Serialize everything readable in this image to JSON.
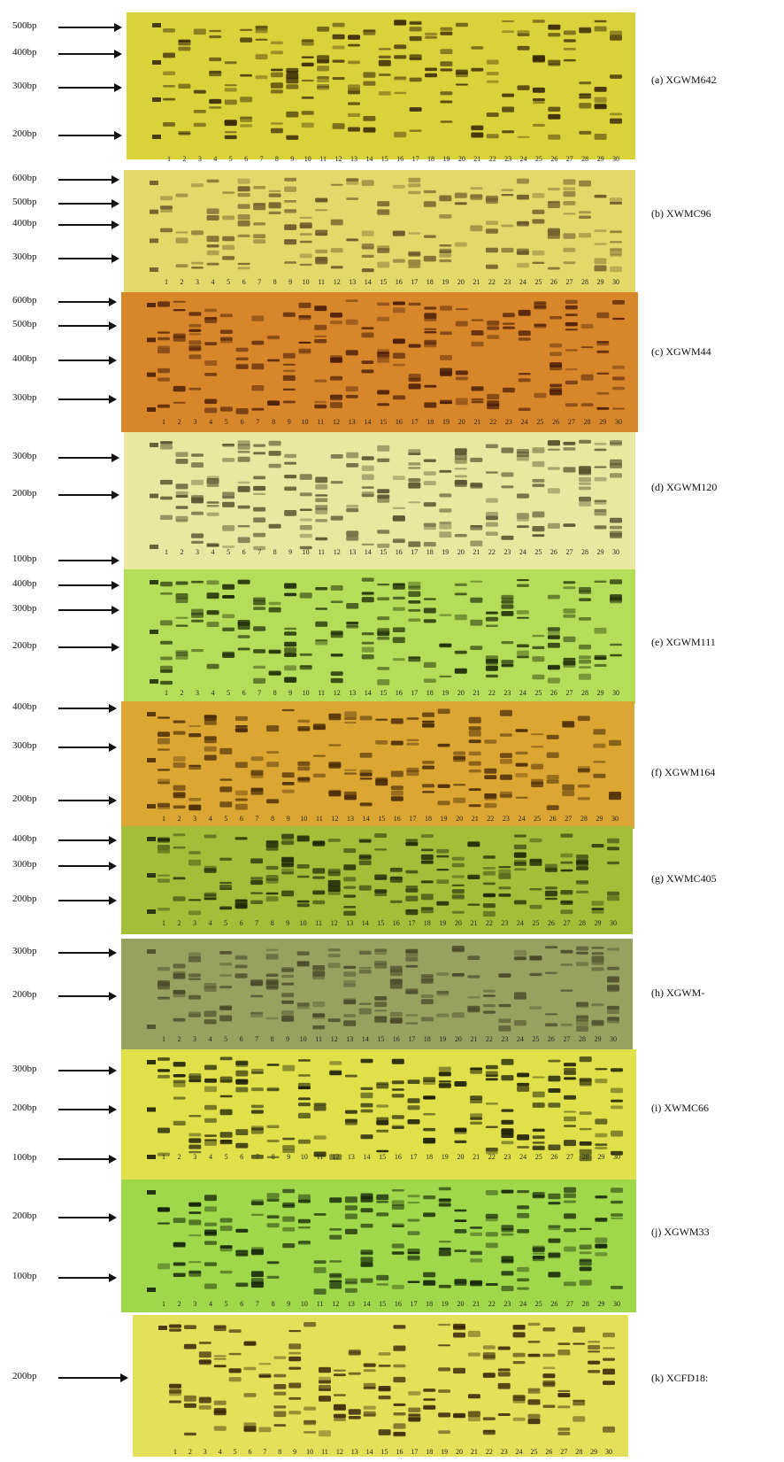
{
  "figure": {
    "panels": [
      {
        "id": "a",
        "title": "(a) XGWM642",
        "color": "#d9d23a",
        "band": "#3a2a08",
        "markers": [
          "500bp",
          "400bp",
          "300bp",
          "200bp"
        ],
        "lanes": [
          "1",
          "2",
          "3",
          "4",
          "5",
          "6",
          "7",
          "8",
          "9",
          "10",
          "11",
          "12",
          "13",
          "14",
          "15",
          "16",
          "17",
          "18",
          "19",
          "20",
          "21",
          "22",
          "23",
          "24",
          "25",
          "26",
          "27",
          "28",
          "29",
          "30"
        ]
      },
      {
        "id": "b",
        "title": "(b) XWMC96",
        "color": "#e3d96a",
        "band": "#6b5a2a",
        "markers": [
          "600bp",
          "500bp",
          "400bp",
          "300bp"
        ],
        "lanes": [
          "1",
          "2",
          "3",
          "4",
          "5",
          "6",
          "7",
          "8",
          "9",
          "10",
          "11",
          "12",
          "13",
          "14",
          "15",
          "16",
          "17",
          "18",
          "19",
          "20",
          "21",
          "22",
          "23",
          "24",
          "25",
          "26",
          "27",
          "28",
          "29",
          "30"
        ]
      },
      {
        "id": "c",
        "title": "(c) XGWM44",
        "color": "#d8862a",
        "band": "#4a1e08",
        "markers": [
          "600bp",
          "500bp",
          "400bp",
          "300bp"
        ],
        "lanes": [
          "1",
          "2",
          "3",
          "4",
          "5",
          "6",
          "7",
          "8",
          "9",
          "10",
          "11",
          "12",
          "13",
          "14",
          "15",
          "16",
          "17",
          "18",
          "19",
          "20",
          "21",
          "22",
          "23",
          "24",
          "25",
          "26",
          "27",
          "28",
          "29",
          "30"
        ]
      },
      {
        "id": "d",
        "title": "(d) XGWM120",
        "color": "#e9e7a0",
        "band": "#5a5430",
        "markers": [
          "300bp",
          "200bp",
          "100bp"
        ],
        "lanes": [
          "1",
          "2",
          "3",
          "4",
          "5",
          "6",
          "7",
          "8",
          "9",
          "10",
          "11",
          "12",
          "13",
          "14",
          "15",
          "16",
          "17",
          "18",
          "19",
          "20",
          "21",
          "22",
          "23",
          "24",
          "25",
          "26",
          "27",
          "28",
          "29",
          "30"
        ]
      },
      {
        "id": "e",
        "title": "(e) XGWM111",
        "color": "#b4de5a",
        "band": "#1f2e08",
        "markers": [
          "400bp",
          "300bp",
          "200bp"
        ],
        "lanes": [
          "1",
          "2",
          "3",
          "4",
          "5",
          "6",
          "7",
          "8",
          "9",
          "10",
          "11",
          "12",
          "13",
          "14",
          "15",
          "16",
          "17",
          "18",
          "19",
          "20",
          "21",
          "22",
          "23",
          "24",
          "25",
          "26",
          "27",
          "28",
          "29",
          "30"
        ]
      },
      {
        "id": "f",
        "title": "(f) XGWM164",
        "color": "#dca632",
        "band": "#4a2c08",
        "markers": [
          "400bp",
          "300bp",
          "200bp"
        ],
        "lanes": [
          "1",
          "2",
          "3",
          "4",
          "5",
          "6",
          "7",
          "8",
          "9",
          "10",
          "11",
          "12",
          "13",
          "14",
          "15",
          "16",
          "17",
          "18",
          "19",
          "20",
          "21",
          "22",
          "23",
          "24",
          "25",
          "26",
          "27",
          "28",
          "29",
          "30"
        ]
      },
      {
        "id": "g",
        "title": "(g) XWMC405",
        "color": "#a2bf3a",
        "band": "#1e2a08",
        "markers": [
          "400bp",
          "300bp",
          "200bp"
        ],
        "lanes": [
          "1",
          "2",
          "3",
          "4",
          "5",
          "6",
          "7",
          "8",
          "9",
          "10",
          "11",
          "12",
          "13",
          "14",
          "15",
          "16",
          "17",
          "18",
          "19",
          "20",
          "21",
          "22",
          "23",
          "24",
          "25",
          "26",
          "27",
          "28",
          "29",
          "30"
        ]
      },
      {
        "id": "h",
        "title": "(h) XGWM-",
        "color": "#98a260",
        "band": "#4a4a2a",
        "markers": [
          "300bp",
          "200bp"
        ],
        "lanes": [
          "1",
          "2",
          "3",
          "4",
          "5",
          "6",
          "7",
          "8",
          "9",
          "10",
          "11",
          "12",
          "13",
          "14",
          "15",
          "16",
          "17",
          "18",
          "19",
          "20",
          "21",
          "22",
          "23",
          "24",
          "25",
          "26",
          "27",
          "28",
          "29",
          "30"
        ]
      },
      {
        "id": "i",
        "title": "(i) XWMC66",
        "color": "#dfe04a",
        "band": "#1c1c08",
        "markers": [
          "300bp",
          "200bp",
          "100bp"
        ],
        "lanes": [
          "1",
          "2",
          "3",
          "4",
          "5",
          "6",
          "7",
          "8",
          "9",
          "10",
          "11",
          "12",
          "13",
          "14",
          "15",
          "16",
          "17",
          "18",
          "19",
          "20",
          "21",
          "22",
          "23",
          "24",
          "25",
          "26",
          "27",
          "28",
          "29",
          "30"
        ]
      },
      {
        "id": "j",
        "title": "(j) XGWM33",
        "color": "#9fd84a",
        "band": "#14240a",
        "markers": [
          "200bp",
          "100bp"
        ],
        "lanes": [
          "1",
          "2",
          "3",
          "4",
          "5",
          "6",
          "7",
          "8",
          "9",
          "10",
          "11",
          "12",
          "13",
          "14",
          "15",
          "16",
          "17",
          "18",
          "19",
          "20",
          "21",
          "22",
          "23",
          "24",
          "25",
          "26",
          "27",
          "28",
          "29",
          "30"
        ]
      },
      {
        "id": "k",
        "title": "(k) XCFD18:",
        "color": "#e4e05a",
        "band": "#3a2a0a",
        "markers": [
          "200bp"
        ],
        "lanes": [
          "1",
          "2",
          "3",
          "4",
          "5",
          "6",
          "7",
          "8",
          "9",
          "10",
          "11",
          "12",
          "13",
          "14",
          "15",
          "16",
          "17",
          "18",
          "19",
          "20",
          "21",
          "22",
          "23",
          "24",
          "25",
          "26",
          "27",
          "28",
          "29",
          "30"
        ]
      }
    ]
  }
}
